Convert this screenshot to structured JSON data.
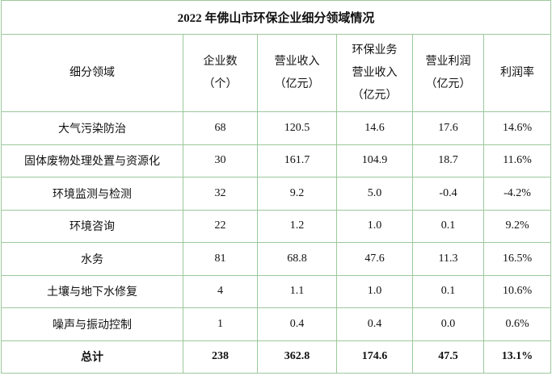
{
  "title": "2022 年佛山市环保企业细分领域情况",
  "header": [
    [
      "细分领域"
    ],
    [
      "企业数",
      "（个）"
    ],
    [
      "营业收入",
      "（亿元）"
    ],
    [
      "环保业务",
      "营业收入",
      "（亿元）"
    ],
    [
      "营业利润",
      "（亿元）"
    ],
    [
      "利润率"
    ]
  ],
  "rows": [
    [
      "大气污染防治",
      "68",
      "120.5",
      "14.6",
      "17.6",
      "14.6%"
    ],
    [
      "固体废物处理处置与资源化",
      "30",
      "161.7",
      "104.9",
      "18.7",
      "11.6%"
    ],
    [
      "环境监测与检测",
      "32",
      "9.2",
      "5.0",
      "-0.4",
      "-4.2%"
    ],
    [
      "环境咨询",
      "22",
      "1.2",
      "1.0",
      "0.1",
      "9.2%"
    ],
    [
      "水务",
      "81",
      "68.8",
      "47.6",
      "11.3",
      "16.5%"
    ],
    [
      "土壤与地下水修复",
      "4",
      "1.1",
      "1.0",
      "0.1",
      "10.6%"
    ],
    [
      "噪声与振动控制",
      "1",
      "0.4",
      "0.4",
      "0.0",
      "0.6%"
    ]
  ],
  "total": [
    "总计",
    "238",
    "362.8",
    "174.6",
    "47.5",
    "13.1%"
  ]
}
